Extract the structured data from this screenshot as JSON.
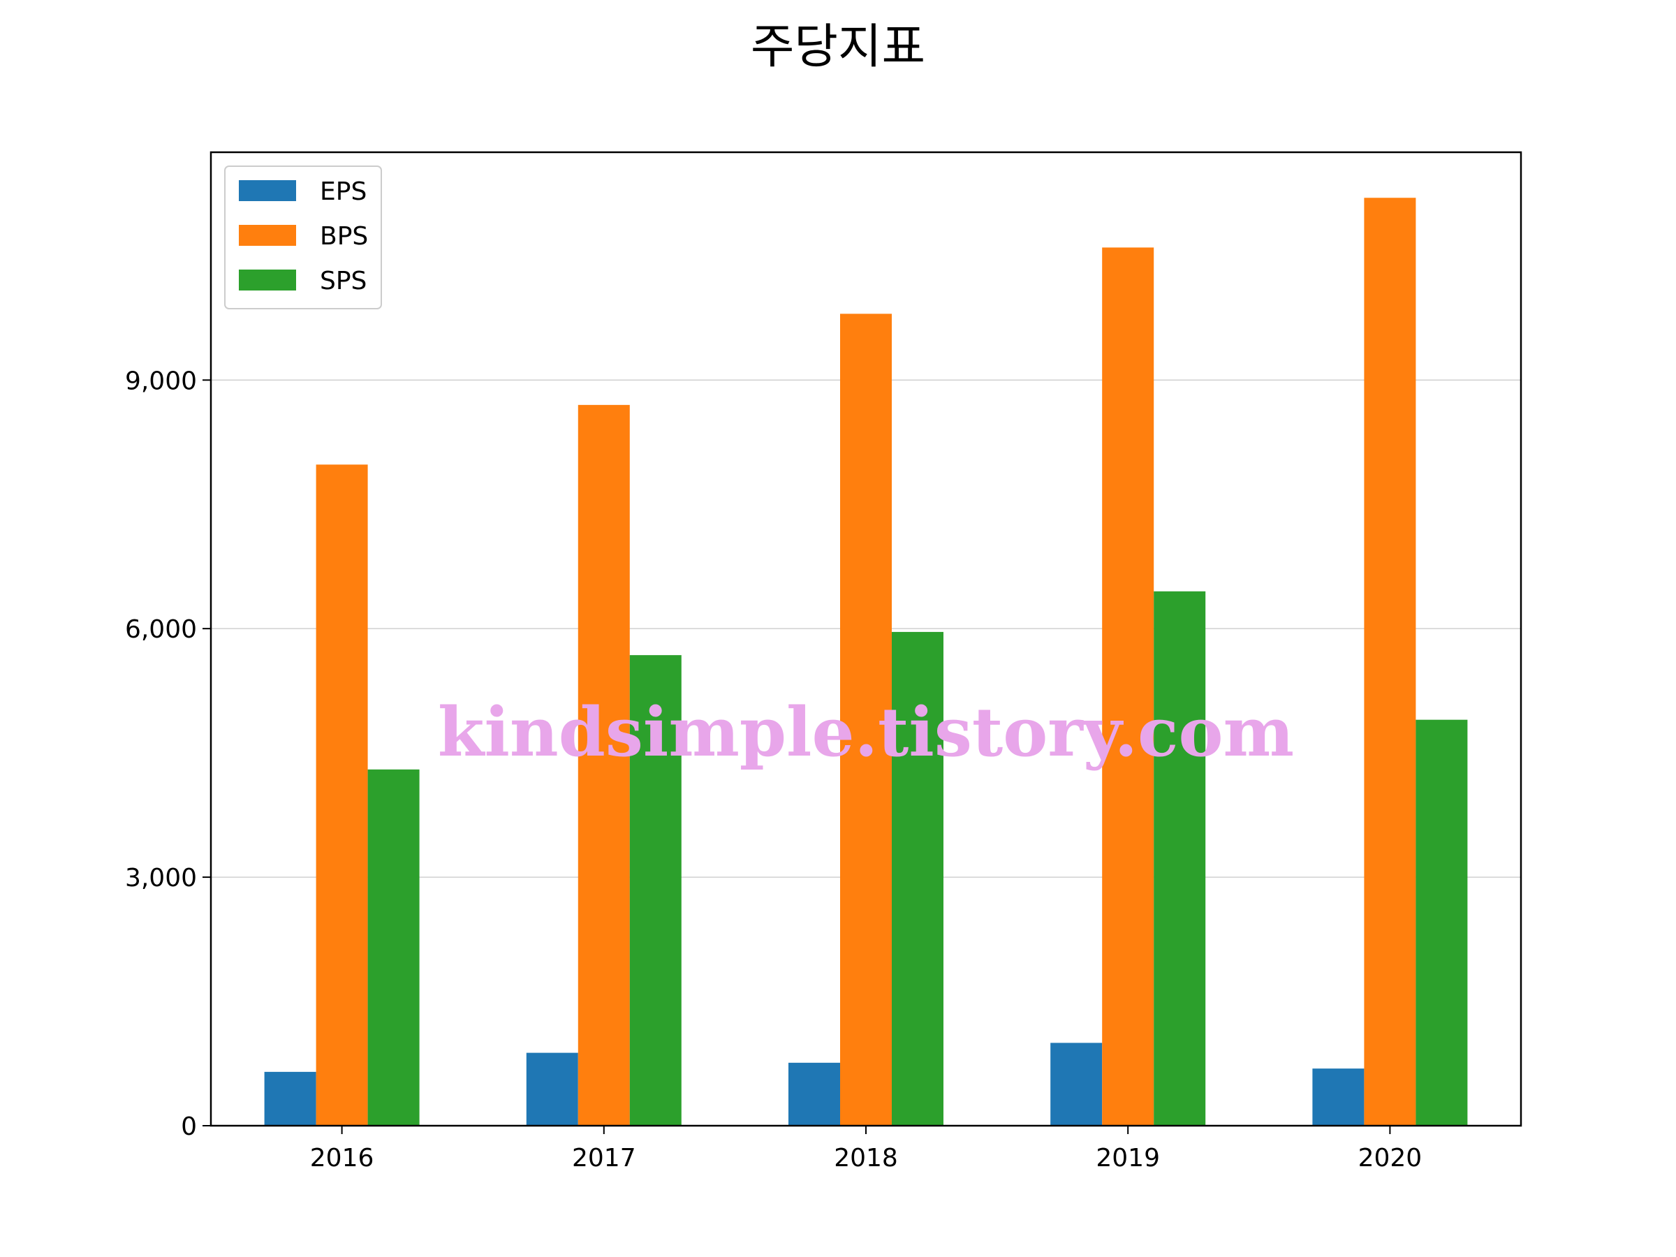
{
  "chart_data": {
    "type": "bar",
    "title": "주당지표",
    "xlabel": "",
    "ylabel": "",
    "categories": [
      "2016",
      "2017",
      "2018",
      "2019",
      "2020"
    ],
    "series": [
      {
        "name": "EPS",
        "color": "#1f77b4",
        "values": [
          650,
          880,
          760,
          1000,
          690
        ]
      },
      {
        "name": "BPS",
        "color": "#ff7f0e",
        "values": [
          7980,
          8700,
          9800,
          10600,
          11200
        ]
      },
      {
        "name": "SPS",
        "color": "#2ca02c",
        "values": [
          4300,
          5680,
          5960,
          6450,
          4900
        ]
      }
    ],
    "ylim": [
      0,
      11750
    ],
    "yticks": [
      0,
      3000,
      6000,
      9000
    ],
    "ytick_labels": [
      "0",
      "3,000",
      "6,000",
      "9,000"
    ],
    "grid": "horizontal",
    "legend_position": "top-left",
    "watermark": "kindsimple.tistory.com"
  }
}
